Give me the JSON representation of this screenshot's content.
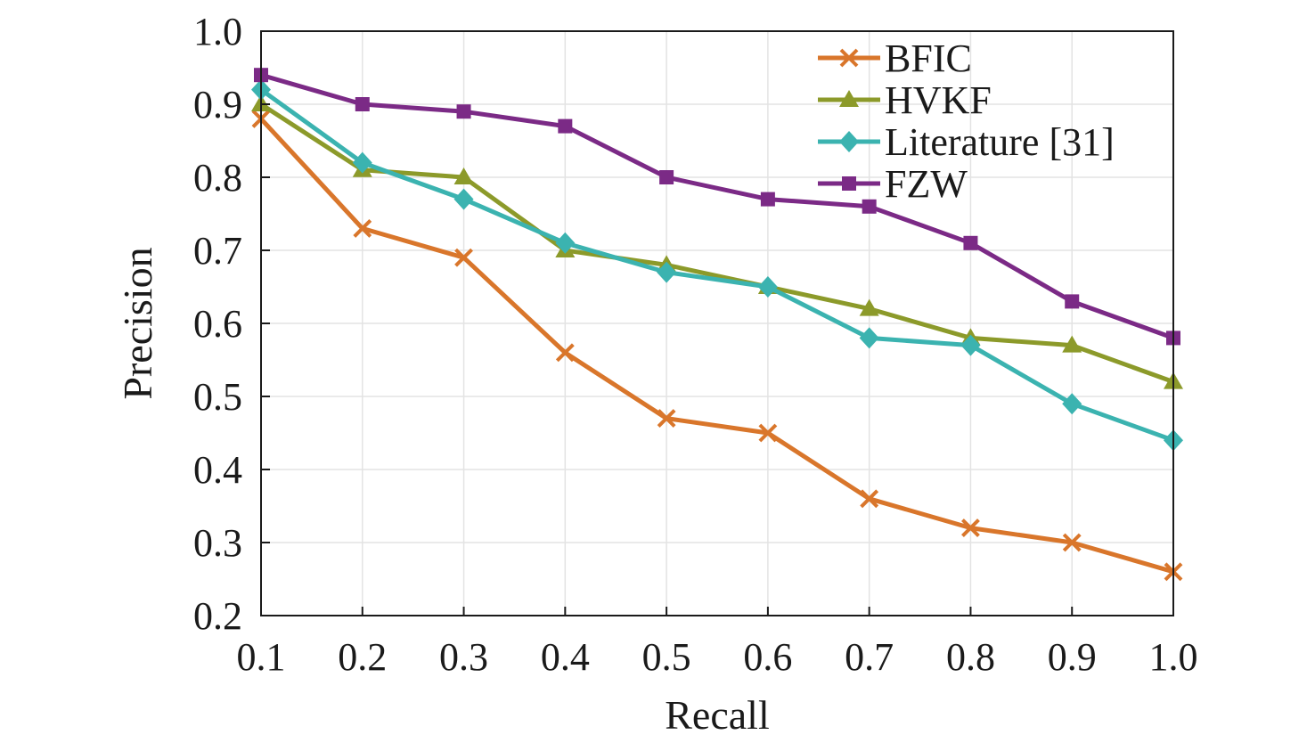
{
  "chart_data": {
    "type": "line",
    "xlabel": "Recall",
    "ylabel": "Precision",
    "xlim": [
      0.1,
      1.0
    ],
    "ylim": [
      0.2,
      1.0
    ],
    "x": [
      0.1,
      0.2,
      0.3,
      0.4,
      0.5,
      0.6,
      0.7,
      0.8,
      0.9,
      1.0
    ],
    "x_tick_labels": [
      "0.1",
      "0.2",
      "0.3",
      "0.4",
      "0.5",
      "0.6",
      "0.7",
      "0.8",
      "0.9",
      "1.0"
    ],
    "y_ticks": [
      0.2,
      0.3,
      0.4,
      0.5,
      0.6,
      0.7,
      0.8,
      0.9,
      1.0
    ],
    "y_tick_labels": [
      "0.2",
      "0.3",
      "0.4",
      "0.5",
      "0.6",
      "0.7",
      "0.8",
      "0.9",
      "1.0"
    ],
    "grid": true,
    "legend_position": "top-right",
    "series": [
      {
        "name": "BFIC",
        "marker": "x",
        "color": "#d9762b",
        "values": [
          0.88,
          0.73,
          0.69,
          0.56,
          0.47,
          0.45,
          0.36,
          0.32,
          0.3,
          0.26
        ]
      },
      {
        "name": "HVKF",
        "marker": "triangle",
        "color": "#8c9a2a",
        "values": [
          0.9,
          0.81,
          0.8,
          0.7,
          0.68,
          0.65,
          0.62,
          0.58,
          0.57,
          0.52
        ]
      },
      {
        "name": "Literature [31]",
        "marker": "diamond",
        "color": "#3bb3b0",
        "values": [
          0.92,
          0.82,
          0.77,
          0.71,
          0.67,
          0.65,
          0.58,
          0.57,
          0.49,
          0.44
        ]
      },
      {
        "name": "FZW",
        "marker": "square",
        "color": "#7b2a86",
        "values": [
          0.94,
          0.9,
          0.89,
          0.87,
          0.8,
          0.77,
          0.76,
          0.71,
          0.63,
          0.58
        ]
      }
    ]
  }
}
